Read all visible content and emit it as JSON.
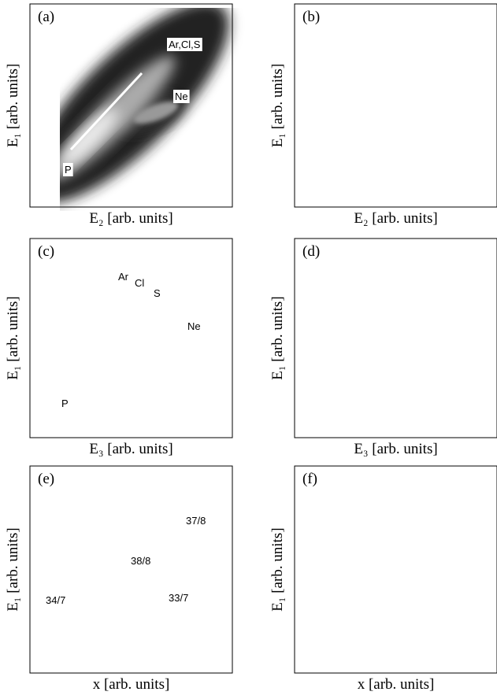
{
  "panels": [
    {
      "label": "(a)",
      "xlabel": "E₂ [arb. units]",
      "ylabel": "E₁ [arb. units]",
      "annotations": [
        "Ar,Cl,S",
        "Ne",
        "P"
      ]
    },
    {
      "label": "(b)",
      "xlabel": "E₂ [arb. units]",
      "ylabel": "E₁ [arb. units]",
      "annotations": []
    },
    {
      "label": "(c)",
      "xlabel": "E₃ [arb. units]",
      "ylabel": "E₁ [arb. units]",
      "annotations": [
        "Ar",
        "Cl",
        "S",
        "Ne",
        "P"
      ]
    },
    {
      "label": "(d)",
      "xlabel": "E₃ [arb. units]",
      "ylabel": "E₁ [arb. units]",
      "annotations": []
    },
    {
      "label": "(e)",
      "xlabel": "x [arb. units]",
      "ylabel": "E₁ [arb. units]",
      "annotations": [
        "37/8",
        "38/8",
        "34/7",
        "33/7"
      ]
    },
    {
      "label": "(f)",
      "xlabel": "x [arb. units]",
      "ylabel": "E₁ [arb. units]",
      "annotations": []
    }
  ]
}
